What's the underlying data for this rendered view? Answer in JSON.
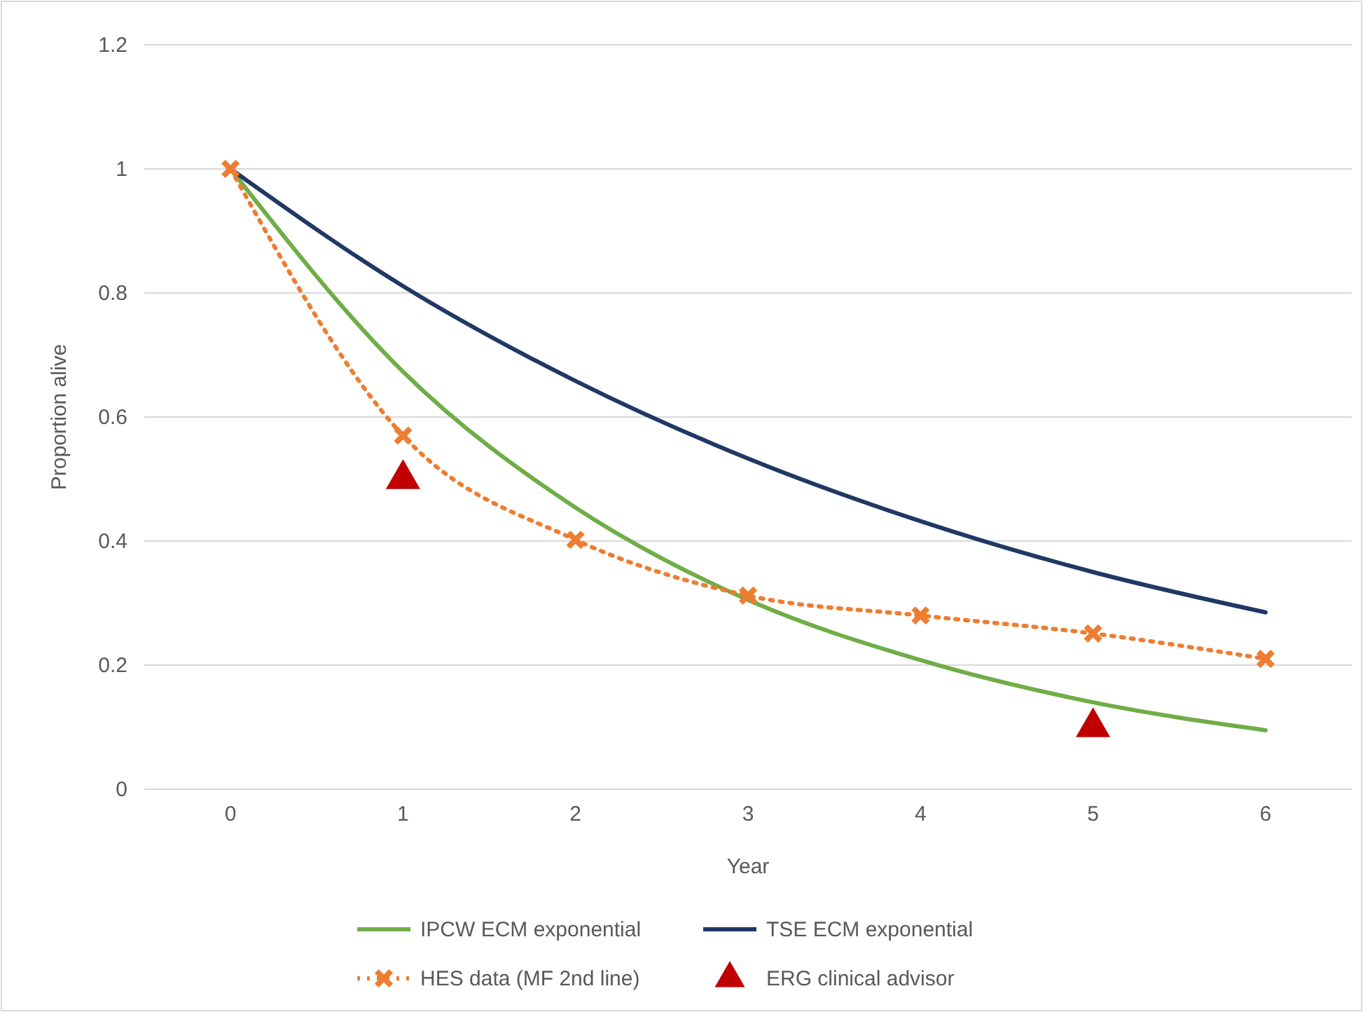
{
  "chart_data": {
    "type": "line",
    "xlabel": "Year",
    "ylabel": "Proportion alive",
    "x": [
      0,
      1,
      2,
      3,
      4,
      5,
      6
    ],
    "xlim": [
      -0.5,
      6.5
    ],
    "xticks": [
      0,
      1,
      2,
      3,
      4,
      5,
      6
    ],
    "ylim": [
      0,
      1.2
    ],
    "yticks": [
      0,
      0.2,
      0.4,
      0.6,
      0.8,
      1,
      1.2
    ],
    "grid": "y",
    "legend": "bottom",
    "series": [
      {
        "name": "IPCW ECM exponential",
        "color": "#70ad47",
        "values": [
          1,
          0.673,
          0.454,
          0.305,
          0.208,
          0.14,
          0.095
        ],
        "line_style": "solid",
        "marker": "none"
      },
      {
        "name": "TSE ECM exponential",
        "color": "#203864",
        "values": [
          1,
          0.811,
          0.658,
          0.533,
          0.432,
          0.35,
          0.285
        ],
        "line_style": "solid",
        "marker": "none"
      },
      {
        "name": "HES data (MF 2nd line)",
        "color": "#ed7d31",
        "values": [
          1,
          0.57,
          0.402,
          0.312,
          0.28,
          0.251,
          0.21
        ],
        "line_style": "dotted",
        "marker": "cross"
      },
      {
        "name": "ERG clinical advisor",
        "type": "scatter",
        "color": "#c00000",
        "x": [
          1,
          5
        ],
        "values": [
          0.5,
          0.1
        ],
        "marker": "triangle"
      }
    ]
  }
}
